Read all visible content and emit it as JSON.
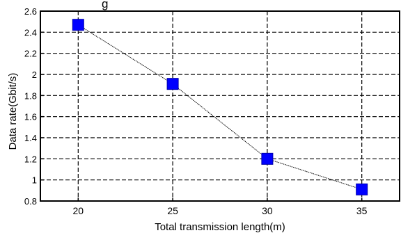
{
  "chart_data": {
    "type": "line",
    "title_fragment": "g",
    "xlabel": "Total transmission length(m)",
    "ylabel": "Data rate(Gbit/s)",
    "xlim": [
      18,
      37
    ],
    "ylim": [
      0.8,
      2.6
    ],
    "xticks": [
      20,
      25,
      30,
      35
    ],
    "yticks": [
      0.8,
      1,
      1.2,
      1.4,
      1.6,
      1.8,
      2,
      2.2,
      2.4,
      2.6
    ],
    "ytick_labels": [
      "0.8",
      "1",
      "1.2",
      "1.4",
      "1.6",
      "1.8",
      "2",
      "2.2",
      "2.4",
      "2.6"
    ],
    "grid": true,
    "series": [
      {
        "x": [
          20,
          25,
          30,
          35
        ],
        "values": [
          2.47,
          1.91,
          1.2,
          0.91
        ],
        "marker": "square",
        "marker_color": "#0000ff",
        "line_color": "#000000",
        "line_style": "dotted"
      }
    ]
  }
}
